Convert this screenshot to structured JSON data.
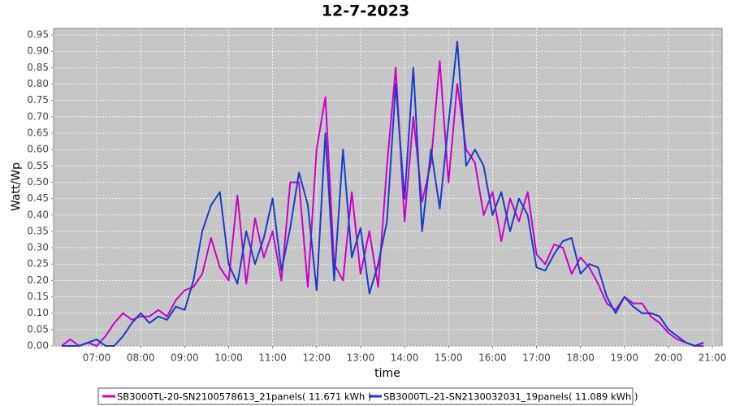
{
  "chart_data": {
    "type": "line",
    "title": "12-7-2023",
    "x_label": "time",
    "y_label": "Watt/Wp",
    "x": [
      6.2,
      6.4,
      6.6,
      6.8,
      7.0,
      7.2,
      7.4,
      7.6,
      7.8,
      8.0,
      8.2,
      8.4,
      8.6,
      8.8,
      9.0,
      9.2,
      9.4,
      9.6,
      9.8,
      10.0,
      10.2,
      10.4,
      10.6,
      10.8,
      11.0,
      11.2,
      11.4,
      11.6,
      11.8,
      12.0,
      12.2,
      12.4,
      12.6,
      12.8,
      13.0,
      13.2,
      13.4,
      13.6,
      13.8,
      14.0,
      14.2,
      14.4,
      14.6,
      14.8,
      15.0,
      15.2,
      15.4,
      15.6,
      15.8,
      16.0,
      16.2,
      16.4,
      16.6,
      16.8,
      17.0,
      17.2,
      17.4,
      17.6,
      17.8,
      18.0,
      18.2,
      18.4,
      18.6,
      18.8,
      19.0,
      19.2,
      19.4,
      19.6,
      19.8,
      20.0,
      20.2,
      20.4,
      20.6,
      20.8
    ],
    "series": [
      {
        "name": "SB3000TL-20-SN2100578613_21panels( 11.671 kWh )",
        "color": "#cc00cc",
        "values": [
          0,
          0.02,
          0,
          0.01,
          0,
          0.03,
          0.07,
          0.1,
          0.08,
          0.09,
          0.09,
          0.11,
          0.09,
          0.14,
          0.17,
          0.18,
          0.22,
          0.33,
          0.24,
          0.2,
          0.46,
          0.19,
          0.39,
          0.27,
          0.35,
          0.2,
          0.5,
          0.5,
          0.18,
          0.6,
          0.76,
          0.25,
          0.2,
          0.47,
          0.22,
          0.35,
          0.18,
          0.55,
          0.85,
          0.38,
          0.7,
          0.44,
          0.56,
          0.87,
          0.5,
          0.8,
          0.6,
          0.56,
          0.4,
          0.47,
          0.32,
          0.45,
          0.38,
          0.47,
          0.28,
          0.25,
          0.31,
          0.3,
          0.22,
          0.27,
          0.24,
          0.19,
          0.13,
          0.11,
          0.15,
          0.13,
          0.13,
          0.09,
          0.07,
          0.04,
          0.02,
          0.01,
          0,
          0
        ]
      },
      {
        "name": "SB3000TL-21-SN2130032031_19panels( 11.089 kWh )",
        "color": "#1a3ccc",
        "values": [
          0,
          0,
          0,
          0.01,
          0.02,
          0,
          0,
          0.03,
          0.07,
          0.1,
          0.07,
          0.09,
          0.08,
          0.12,
          0.11,
          0.2,
          0.35,
          0.43,
          0.47,
          0.25,
          0.19,
          0.35,
          0.25,
          0.33,
          0.45,
          0.23,
          0.36,
          0.53,
          0.43,
          0.17,
          0.65,
          0.2,
          0.6,
          0.27,
          0.36,
          0.16,
          0.25,
          0.38,
          0.8,
          0.45,
          0.85,
          0.35,
          0.6,
          0.42,
          0.68,
          0.93,
          0.55,
          0.6,
          0.55,
          0.4,
          0.47,
          0.35,
          0.45,
          0.4,
          0.24,
          0.23,
          0.28,
          0.32,
          0.33,
          0.22,
          0.25,
          0.24,
          0.15,
          0.1,
          0.15,
          0.12,
          0.1,
          0.1,
          0.09,
          0.05,
          0.03,
          0.01,
          0,
          0.01
        ]
      }
    ],
    "xlim": [
      6.02,
      21.22
    ],
    "ylim": [
      0,
      0.97
    ],
    "xticks": [
      {
        "value": 7,
        "label": "07:00"
      },
      {
        "value": 8,
        "label": "08:00"
      },
      {
        "value": 9,
        "label": "09:00"
      },
      {
        "value": 10,
        "label": "10:00"
      },
      {
        "value": 11,
        "label": "11:00"
      },
      {
        "value": 12,
        "label": "12:00"
      },
      {
        "value": 13,
        "label": "13:00"
      },
      {
        "value": 14,
        "label": "14:00"
      },
      {
        "value": 15,
        "label": "15:00"
      },
      {
        "value": 16,
        "label": "16:00"
      },
      {
        "value": 17,
        "label": "17:00"
      },
      {
        "value": 18,
        "label": "18:00"
      },
      {
        "value": 19,
        "label": "19:00"
      },
      {
        "value": 20,
        "label": "20:00"
      },
      {
        "value": 21,
        "label": "21:00"
      }
    ],
    "yticks": [
      {
        "value": 0,
        "label": "0.00"
      },
      0.05,
      {
        "value": 0.1,
        "label": "0.10"
      },
      0.15,
      {
        "value": 0.2,
        "label": "0.20"
      },
      0.25,
      {
        "value": 0.3,
        "label": "0.30"
      },
      0.35,
      {
        "value": 0.4,
        "label": "0.40"
      },
      0.45,
      {
        "value": 0.5,
        "label": "0.50"
      },
      0.55,
      {
        "value": 0.6,
        "label": "0.60"
      },
      0.65,
      {
        "value": 0.7,
        "label": "0.70"
      },
      0.75,
      {
        "value": 0.8,
        "label": "0.80"
      },
      0.85,
      {
        "value": 0.9,
        "label": "0.90"
      },
      0.95
    ],
    "grid": true
  }
}
